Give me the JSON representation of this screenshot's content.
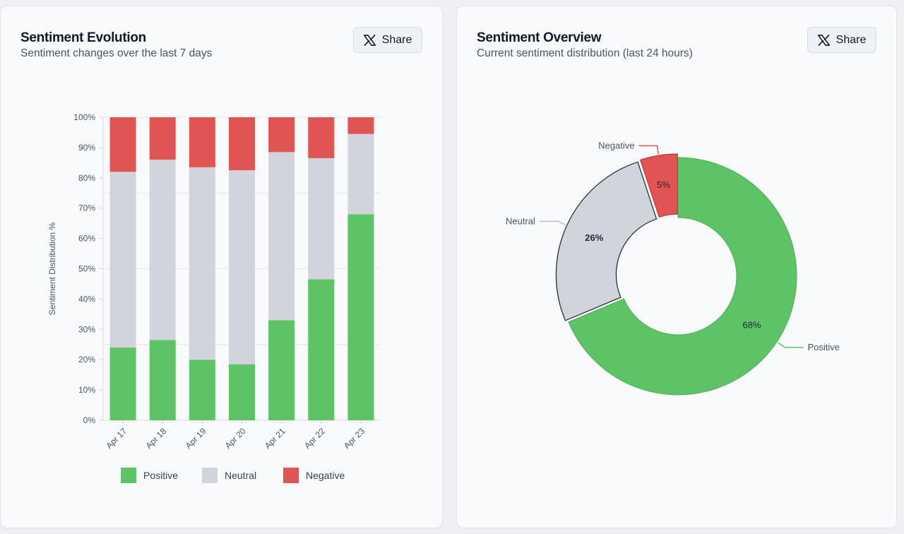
{
  "share_label": "Share",
  "colors": {
    "positive": "#5ec266",
    "neutral": "#d1d4da",
    "negative": "#e05553"
  },
  "cards": [
    {
      "title": "Sentiment Evolution",
      "subtitle": "Sentiment changes over the last 7 days"
    },
    {
      "title": "Sentiment Overview",
      "subtitle": "Current sentiment distribution (last 24 hours)"
    }
  ],
  "chart_data": [
    {
      "type": "bar",
      "stacked": true,
      "title": "Sentiment Evolution",
      "subtitle": "Sentiment changes over the last 7 days",
      "ylabel": "Sentiment Distribution %",
      "xlabel": "",
      "ylim": [
        0,
        100
      ],
      "yticks": [
        0,
        10,
        20,
        30,
        40,
        50,
        60,
        70,
        80,
        90,
        100
      ],
      "ytick_labels": [
        "0%",
        "10%",
        "20%",
        "30%",
        "40%",
        "50%",
        "60%",
        "70%",
        "80%",
        "90%",
        "100%"
      ],
      "categories": [
        "Apr 17",
        "Apr 18",
        "Apr 19",
        "Apr 20",
        "Apr 21",
        "Apr 22",
        "Apr 23"
      ],
      "series": [
        {
          "name": "Positive",
          "color": "#5ec266",
          "values": [
            24,
            26.5,
            20,
            18.5,
            33,
            46.5,
            68
          ]
        },
        {
          "name": "Neutral",
          "color": "#d1d4da",
          "values": [
            58,
            59.5,
            63.5,
            64,
            55.5,
            40,
            26.5
          ]
        },
        {
          "name": "Negative",
          "color": "#e05553",
          "values": [
            18,
            14,
            16.5,
            17.5,
            11.5,
            13.5,
            5.5
          ]
        }
      ],
      "legend": [
        "Positive",
        "Neutral",
        "Negative"
      ],
      "legend_position": "bottom",
      "grid": true
    },
    {
      "type": "pie",
      "donut": true,
      "title": "Sentiment Overview",
      "subtitle": "Current sentiment distribution (last 24 hours)",
      "slices": [
        {
          "label": "Positive",
          "value": 68,
          "display": "68%",
          "color": "#5ec266"
        },
        {
          "label": "Neutral",
          "value": 26,
          "display": "26%",
          "color": "#d1d4da"
        },
        {
          "label": "Negative",
          "value": 5,
          "display": "5%",
          "color": "#e05553"
        }
      ]
    }
  ]
}
